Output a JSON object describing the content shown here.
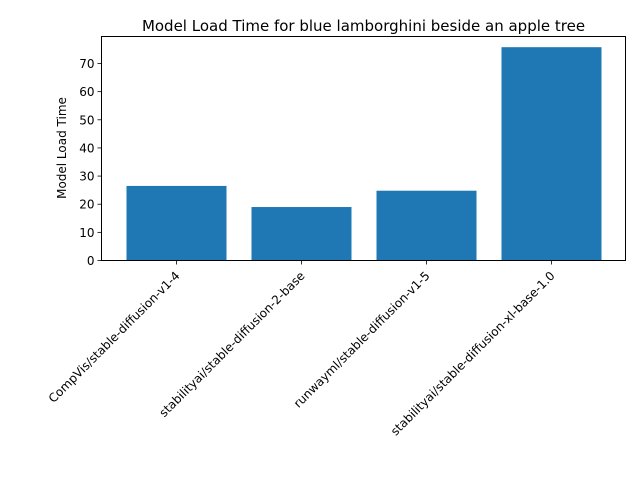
{
  "chart_data": {
    "type": "bar",
    "title": "Model Load Time for blue lamborghini beside an apple tree",
    "xlabel": "",
    "ylabel": "Model Load Time",
    "categories": [
      "CompVis/stable-diffusion-v1-4",
      "stabilityai/stable-diffusion-2-base",
      "runwayml/stable-diffusion-v1-5",
      "stabilityai/stable-diffusion-xl-base-1.0"
    ],
    "values": [
      26.5,
      19.0,
      24.8,
      75.8
    ],
    "ylim": [
      0,
      79.6
    ],
    "yticks": [
      0,
      10,
      20,
      30,
      40,
      50,
      60,
      70
    ],
    "bar_color": "#1f77b4",
    "grid": false,
    "legend": "none"
  }
}
